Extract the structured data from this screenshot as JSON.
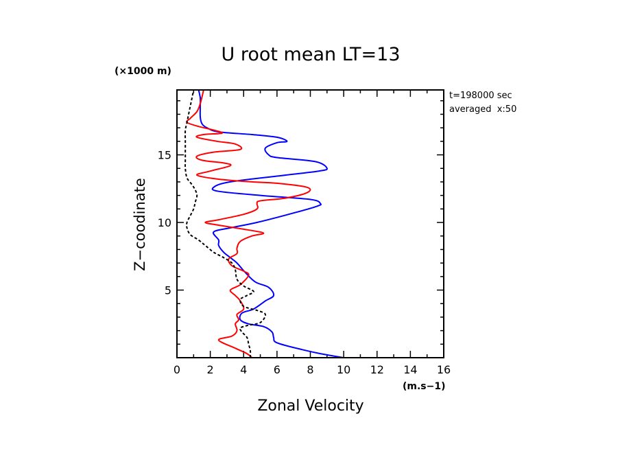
{
  "chart_data": {
    "type": "line",
    "title": "U root mean LT=13",
    "xlabel": "Zonal Velocity",
    "xunit": "(m.s−1)",
    "ylabel": "Z−coodinate",
    "yunit": "(×1000 m)",
    "xlim": [
      0,
      16
    ],
    "ylim": [
      0,
      19.8
    ],
    "xticks": [
      0,
      2,
      4,
      6,
      8,
      10,
      12,
      14,
      16
    ],
    "yticks": [
      5,
      10,
      15
    ],
    "annotations": [
      "t=198000 sec",
      "averaged  x:50"
    ],
    "grid": false,
    "legend": "none",
    "series": [
      {
        "color": "#0000ff",
        "dash": "solid",
        "points": [
          [
            10.0,
            0.0
          ],
          [
            8.6,
            0.3
          ],
          [
            7.5,
            0.6
          ],
          [
            6.0,
            1.1
          ],
          [
            5.8,
            1.5
          ],
          [
            5.7,
            1.9
          ],
          [
            5.2,
            2.3
          ],
          [
            4.3,
            2.5
          ],
          [
            3.8,
            2.8
          ],
          [
            3.9,
            3.3
          ],
          [
            4.6,
            3.6
          ],
          [
            5.3,
            4.2
          ],
          [
            5.8,
            4.6
          ],
          [
            5.5,
            5.2
          ],
          [
            4.7,
            5.6
          ],
          [
            4.1,
            6.3
          ],
          [
            3.6,
            7.0
          ],
          [
            3.2,
            7.4
          ],
          [
            2.8,
            7.8
          ],
          [
            2.5,
            8.3
          ],
          [
            2.5,
            8.7
          ],
          [
            2.2,
            9.3
          ],
          [
            3.2,
            9.6
          ],
          [
            4.8,
            10.0
          ],
          [
            7.0,
            10.7
          ],
          [
            8.4,
            11.2
          ],
          [
            8.6,
            11.4
          ],
          [
            8.0,
            11.7
          ],
          [
            5.0,
            12.0
          ],
          [
            2.5,
            12.3
          ],
          [
            2.2,
            12.6
          ],
          [
            3.2,
            13.0
          ],
          [
            6.5,
            13.5
          ],
          [
            8.5,
            13.8
          ],
          [
            9.0,
            14.0
          ],
          [
            8.3,
            14.5
          ],
          [
            6.0,
            14.8
          ],
          [
            5.5,
            15.0
          ],
          [
            5.3,
            15.5
          ],
          [
            6.0,
            15.9
          ],
          [
            6.6,
            16.0
          ],
          [
            6.0,
            16.3
          ],
          [
            4.5,
            16.5
          ],
          [
            2.5,
            16.7
          ],
          [
            1.8,
            17.0
          ],
          [
            1.5,
            17.3
          ],
          [
            1.4,
            17.8
          ],
          [
            1.4,
            18.6
          ],
          [
            1.4,
            19.2
          ],
          [
            1.3,
            19.8
          ]
        ]
      },
      {
        "color": "#ff0000",
        "dash": "solid",
        "points": [
          [
            4.5,
            0.0
          ],
          [
            4.2,
            0.3
          ],
          [
            3.5,
            0.7
          ],
          [
            2.5,
            1.3
          ],
          [
            3.3,
            1.6
          ],
          [
            3.6,
            2.0
          ],
          [
            3.5,
            2.5
          ],
          [
            3.7,
            2.8
          ],
          [
            3.6,
            3.2
          ],
          [
            4.0,
            3.6
          ],
          [
            3.8,
            4.2
          ],
          [
            3.5,
            4.6
          ],
          [
            3.2,
            5.0
          ],
          [
            3.8,
            5.4
          ],
          [
            4.3,
            6.1
          ],
          [
            4.0,
            6.4
          ],
          [
            3.3,
            6.8
          ],
          [
            3.1,
            7.3
          ],
          [
            3.6,
            7.7
          ],
          [
            3.6,
            8.1
          ],
          [
            3.8,
            8.6
          ],
          [
            4.5,
            9.0
          ],
          [
            5.2,
            9.2
          ],
          [
            4.5,
            9.4
          ],
          [
            2.5,
            9.8
          ],
          [
            1.7,
            10.0
          ],
          [
            2.5,
            10.2
          ],
          [
            4.0,
            10.6
          ],
          [
            4.8,
            11.0
          ],
          [
            4.8,
            11.4
          ],
          [
            5.0,
            11.6
          ],
          [
            6.5,
            11.8
          ],
          [
            7.8,
            12.2
          ],
          [
            7.8,
            12.6
          ],
          [
            6.0,
            12.9
          ],
          [
            4.5,
            13.0
          ],
          [
            2.5,
            13.2
          ],
          [
            1.2,
            13.5
          ],
          [
            2.0,
            13.8
          ],
          [
            3.2,
            14.2
          ],
          [
            2.8,
            14.4
          ],
          [
            1.5,
            14.6
          ],
          [
            1.2,
            14.9
          ],
          [
            2.2,
            15.2
          ],
          [
            3.8,
            15.4
          ],
          [
            3.5,
            15.8
          ],
          [
            2.4,
            16.0
          ],
          [
            1.2,
            16.3
          ],
          [
            1.6,
            16.5
          ],
          [
            2.7,
            16.6
          ],
          [
            2.3,
            16.8
          ],
          [
            1.3,
            17.1
          ],
          [
            0.6,
            17.4
          ],
          [
            0.8,
            17.7
          ],
          [
            1.2,
            18.2
          ],
          [
            1.4,
            18.8
          ],
          [
            1.6,
            19.8
          ]
        ]
      },
      {
        "color": "#000000",
        "dash": "dashed",
        "points": [
          [
            4.4,
            0.0
          ],
          [
            4.4,
            0.5
          ],
          [
            4.3,
            1.0
          ],
          [
            4.2,
            1.5
          ],
          [
            3.9,
            1.9
          ],
          [
            3.8,
            2.2
          ],
          [
            4.3,
            2.4
          ],
          [
            5.0,
            2.6
          ],
          [
            5.3,
            3.2
          ],
          [
            4.8,
            3.5
          ],
          [
            4.0,
            3.8
          ],
          [
            3.8,
            4.3
          ],
          [
            4.2,
            4.6
          ],
          [
            4.6,
            4.9
          ],
          [
            4.0,
            5.3
          ],
          [
            3.6,
            5.8
          ],
          [
            3.5,
            6.5
          ],
          [
            3.3,
            7.0
          ],
          [
            2.8,
            7.4
          ],
          [
            2.2,
            7.8
          ],
          [
            1.7,
            8.3
          ],
          [
            1.3,
            8.7
          ],
          [
            0.8,
            9.1
          ],
          [
            0.6,
            9.6
          ],
          [
            0.6,
            10.0
          ],
          [
            0.8,
            10.5
          ],
          [
            1.0,
            11.0
          ],
          [
            1.1,
            11.5
          ],
          [
            1.2,
            12.0
          ],
          [
            1.1,
            12.4
          ],
          [
            0.9,
            12.8
          ],
          [
            0.6,
            13.3
          ],
          [
            0.5,
            14.0
          ],
          [
            0.5,
            14.6
          ],
          [
            0.5,
            15.3
          ],
          [
            0.5,
            16.0
          ],
          [
            0.5,
            16.8
          ],
          [
            0.6,
            17.4
          ],
          [
            0.7,
            18.0
          ],
          [
            0.8,
            18.6
          ],
          [
            0.9,
            19.2
          ],
          [
            1.0,
            19.8
          ]
        ]
      }
    ]
  }
}
